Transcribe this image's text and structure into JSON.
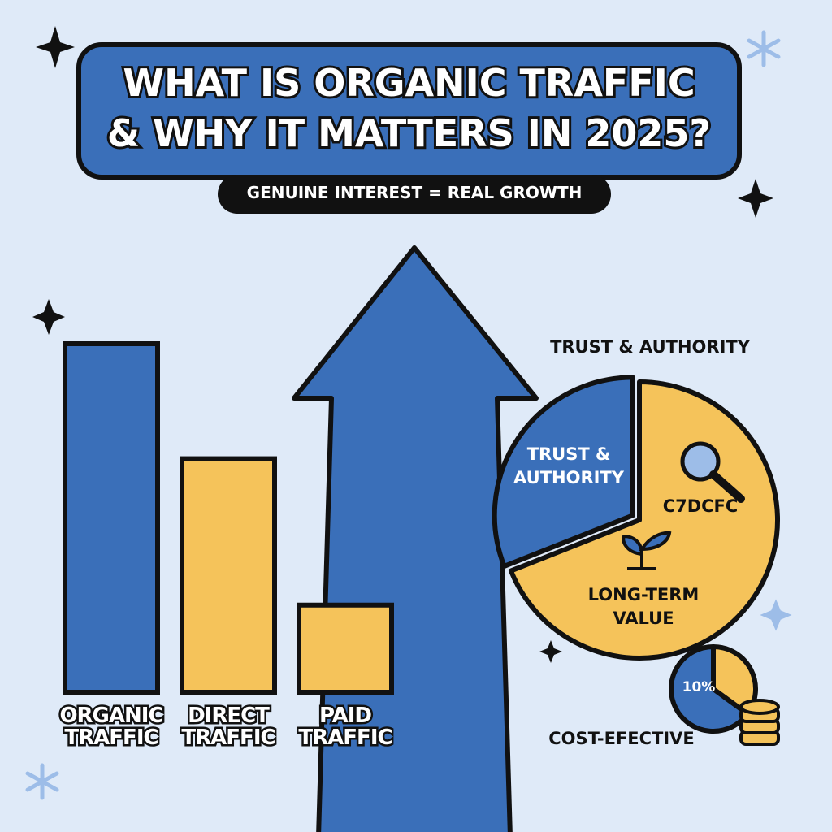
{
  "header": {
    "title": [
      "WHAT IS ORGANIC TRAFFIC",
      "& WHY IT MATTERS IN 2025?"
    ],
    "subtitle": "GENUINE INTEREST = REAL GROWTH"
  },
  "chart_data": [
    {
      "type": "bar",
      "categories": [
        "ORGANIC TRAFFIC",
        "DIRECT TRAFFIC",
        "PAID TRAFFIC"
      ],
      "values": [
        100,
        67,
        25
      ],
      "colors": [
        "#3a6fb9",
        "#f5c35a",
        "#f5c35a"
      ],
      "ylim": [
        0,
        100
      ]
    },
    {
      "type": "pie",
      "title": "TRUST & AUTHORITY",
      "categories": [
        "TRUST & AUTHORITY",
        "LONG-TERM VALUE"
      ],
      "values": [
        31,
        69
      ],
      "colors": [
        "#3a6fb9",
        "#f5c35a"
      ],
      "annotations": [
        "C7DCFC"
      ]
    },
    {
      "type": "pie",
      "title": "COST-EFECTIVE",
      "values": [
        65,
        35
      ],
      "colors": [
        "#3a6fb9",
        "#f5c35a"
      ],
      "annotations": [
        "10%"
      ]
    }
  ]
}
